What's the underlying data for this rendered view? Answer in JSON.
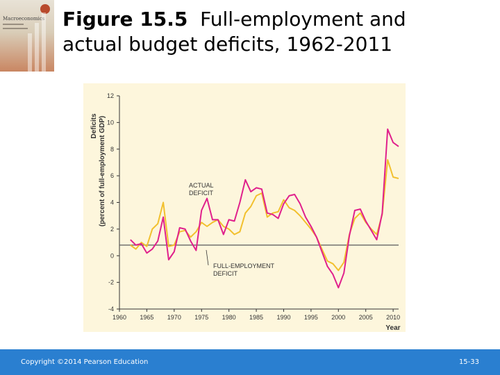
{
  "slide": {
    "cover_title": "Macroeconomics",
    "title_bold": "Figure 15.5",
    "title_line1": "Full-employment and",
    "title_line2": "actual budget deficits, 1962-2011",
    "copyright": "Copyright ©2014 Pearson Education",
    "page": "15-33"
  },
  "colors": {
    "actual": "#e0208c",
    "full_employment": "#f2c02e",
    "reference_line": "#666666",
    "panel": "#fdf6dc",
    "footer": "#2a7fd0"
  },
  "chart_data": {
    "type": "line",
    "ylabel": "Deficits",
    "ylabel_sub": "(percent of full-employment GDP)",
    "xlabel": "Year",
    "xlim": [
      1960,
      2011
    ],
    "ylim": [
      -4,
      12
    ],
    "xticks": [
      1960,
      1965,
      1970,
      1975,
      1980,
      1985,
      1990,
      1995,
      2000,
      2005,
      2010
    ],
    "yticks": [
      -4,
      -2,
      0,
      2,
      4,
      6,
      8,
      10,
      12
    ],
    "reference_line": 0.8,
    "annotations": [
      {
        "lines": [
          "ACTUAL",
          "DEFICIT"
        ],
        "series": "actual"
      },
      {
        "lines": [
          "FULL-EMPLOYMENT",
          "DEFICIT"
        ],
        "series": "full_employment"
      }
    ],
    "series": [
      {
        "key": "actual",
        "name": "ACTUAL DEFICIT",
        "x": [
          1962,
          1963,
          1964,
          1965,
          1966,
          1967,
          1968,
          1969,
          1970,
          1971,
          1972,
          1973,
          1974,
          1975,
          1976,
          1977,
          1978,
          1979,
          1980,
          1981,
          1982,
          1983,
          1984,
          1985,
          1986,
          1987,
          1988,
          1989,
          1990,
          1991,
          1992,
          1993,
          1994,
          1995,
          1996,
          1997,
          1998,
          1999,
          2000,
          2001,
          2002,
          2003,
          2004,
          2005,
          2006,
          2007,
          2008,
          2009,
          2010,
          2011
        ],
        "y": [
          1.2,
          0.8,
          0.9,
          0.2,
          0.5,
          1.1,
          2.9,
          -0.3,
          0.3,
          2.1,
          2.0,
          1.1,
          0.4,
          3.4,
          4.3,
          2.7,
          2.7,
          1.6,
          2.7,
          2.6,
          4.0,
          5.7,
          4.8,
          5.1,
          5.0,
          3.2,
          3.1,
          2.8,
          3.9,
          4.5,
          4.6,
          3.9,
          2.9,
          2.2,
          1.4,
          0.3,
          -0.8,
          -1.4,
          -2.4,
          -1.3,
          1.5,
          3.4,
          3.5,
          2.6,
          1.9,
          1.2,
          3.2,
          9.5,
          8.5,
          8.2
        ]
      },
      {
        "key": "full_employment",
        "name": "FULL-EMPLOYMENT DEFICIT",
        "x": [
          1962,
          1963,
          1964,
          1965,
          1966,
          1967,
          1968,
          1969,
          1970,
          1971,
          1972,
          1973,
          1974,
          1975,
          1976,
          1977,
          1978,
          1979,
          1980,
          1981,
          1982,
          1983,
          1984,
          1985,
          1986,
          1987,
          1988,
          1989,
          1990,
          1991,
          1992,
          1993,
          1994,
          1995,
          1996,
          1997,
          1998,
          1999,
          2000,
          2001,
          2002,
          2003,
          2004,
          2005,
          2006,
          2007,
          2008,
          2009,
          2010,
          2011
        ],
        "y": [
          0.8,
          0.5,
          1.0,
          0.7,
          2.0,
          2.4,
          4.0,
          0.7,
          0.8,
          1.8,
          1.9,
          1.4,
          1.8,
          2.5,
          2.2,
          2.5,
          2.7,
          2.2,
          2.0,
          1.6,
          1.8,
          3.2,
          3.7,
          4.5,
          4.7,
          2.9,
          3.2,
          3.3,
          4.2,
          3.6,
          3.4,
          3.0,
          2.5,
          2.0,
          1.4,
          0.5,
          -0.4,
          -0.6,
          -1.1,
          -0.5,
          1.6,
          2.8,
          3.2,
          2.5,
          2.0,
          1.6,
          3.1,
          7.2,
          5.9,
          5.8
        ]
      }
    ]
  }
}
